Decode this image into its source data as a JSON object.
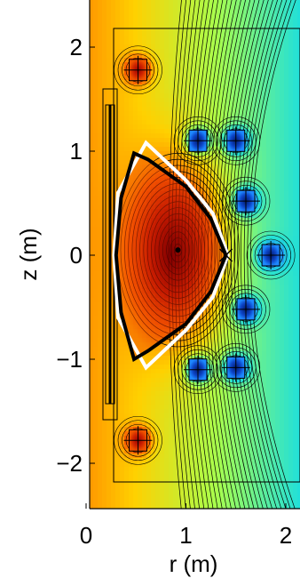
{
  "chart_data": {
    "type": "heatmap",
    "title": "",
    "xlabel": "r (m)",
    "ylabel": "z (m)",
    "xlim": [
      0,
      2
    ],
    "ylim": [
      -2.4,
      2.45
    ],
    "xticks": [
      "0",
      "1",
      "2"
    ],
    "yticks": [
      "−2",
      "−1",
      "0",
      "1",
      "2"
    ],
    "xtick_values": [
      0,
      1,
      2
    ],
    "ytick_values": [
      -2,
      -1,
      0,
      1,
      2
    ],
    "grid": false,
    "legend": "none",
    "colormap": [
      "#7f0000",
      "#c81e00",
      "#ff6a00",
      "#ffd000",
      "#a8ff4d",
      "#22e0d8",
      "#1e7fff",
      "#0a2a8a"
    ],
    "contour_color": "#000000",
    "magnetic_axis": {
      "r": 0.92,
      "z": 0.05
    },
    "x_point_outer": {
      "r": 1.4,
      "z": 0.0
    },
    "poloidal_field_coils": [
      {
        "r": 0.52,
        "z": 1.78
      },
      {
        "r": 0.52,
        "z": -1.78
      },
      {
        "r": 1.12,
        "z": 1.1
      },
      {
        "r": 1.12,
        "z": -1.1
      },
      {
        "r": 1.5,
        "z": 1.1
      },
      {
        "r": 1.5,
        "z": -1.08
      },
      {
        "r": 1.6,
        "z": 0.52
      },
      {
        "r": 1.6,
        "z": -0.52
      },
      {
        "r": 1.85,
        "z": 0.0
      }
    ],
    "plasma_boundary": [
      {
        "r": 0.48,
        "z": 0.98
      },
      {
        "r": 0.62,
        "z": 0.92
      },
      {
        "r": 1.0,
        "z": 0.66
      },
      {
        "r": 1.25,
        "z": 0.35
      },
      {
        "r": 1.4,
        "z": 0.0
      },
      {
        "r": 1.25,
        "z": -0.35
      },
      {
        "r": 1.0,
        "z": -0.66
      },
      {
        "r": 0.62,
        "z": -0.92
      },
      {
        "r": 0.48,
        "z": -1.0
      },
      {
        "r": 0.35,
        "z": -0.55
      },
      {
        "r": 0.3,
        "z": 0.0
      },
      {
        "r": 0.35,
        "z": 0.55
      }
    ],
    "limiter": [
      {
        "r": 0.6,
        "z": 1.08
      },
      {
        "r": 1.0,
        "z": 0.72
      },
      {
        "r": 1.27,
        "z": 0.4
      },
      {
        "r": 1.42,
        "z": 0.0
      },
      {
        "r": 1.27,
        "z": -0.4
      },
      {
        "r": 1.0,
        "z": -0.72
      },
      {
        "r": 0.6,
        "z": -1.08
      },
      {
        "r": 0.32,
        "z": -0.6
      },
      {
        "r": 0.28,
        "z": 0.0
      },
      {
        "r": 0.32,
        "z": 0.6
      }
    ]
  }
}
